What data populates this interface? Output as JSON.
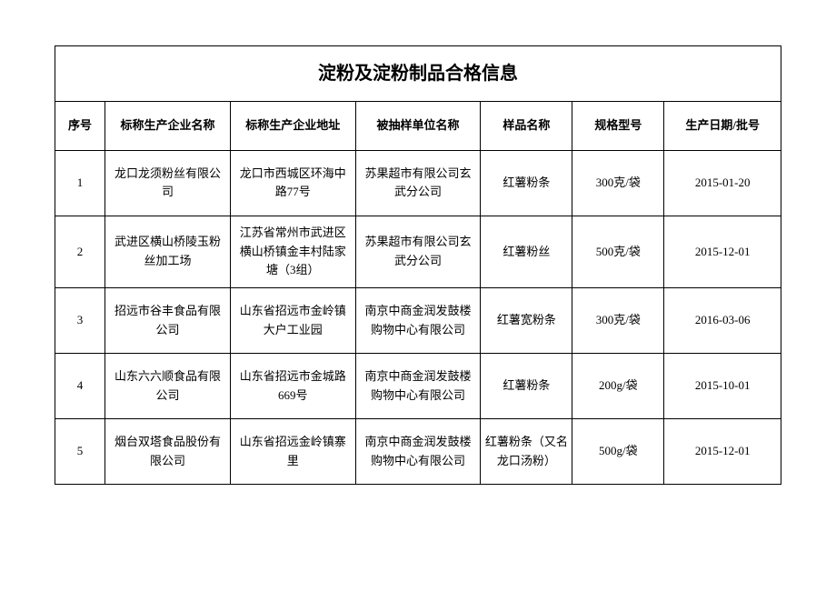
{
  "title": "淀粉及淀粉制品合格信息",
  "columns": [
    {
      "key": "seq",
      "label": "序号"
    },
    {
      "key": "company",
      "label": "标称生产企业名称"
    },
    {
      "key": "address",
      "label": "标称生产企业地址"
    },
    {
      "key": "sampled",
      "label": "被抽样单位名称"
    },
    {
      "key": "sample",
      "label": "样品名称"
    },
    {
      "key": "spec",
      "label": "规格型号"
    },
    {
      "key": "date",
      "label": "生产日期/批号"
    }
  ],
  "rows": [
    {
      "seq": "1",
      "company": "龙口龙须粉丝有限公司",
      "address": "龙口市西城区环海中路77号",
      "sampled": "苏果超市有限公司玄武分公司",
      "sample": "红薯粉条",
      "spec": "300克/袋",
      "date": "2015-01-20"
    },
    {
      "seq": "2",
      "company": "武进区横山桥陵玉粉丝加工场",
      "address": "江苏省常州市武进区横山桥镇金丰村陆家塘（3组）",
      "sampled": "苏果超市有限公司玄武分公司",
      "sample": "红薯粉丝",
      "spec": "500克/袋",
      "date": "2015-12-01"
    },
    {
      "seq": "3",
      "company": "招远市谷丰食品有限公司",
      "address": "山东省招远市金岭镇大户工业园",
      "sampled": "南京中商金润发鼓楼购物中心有限公司",
      "sample": "红薯宽粉条",
      "spec": "300克/袋",
      "date": "2016-03-06"
    },
    {
      "seq": "4",
      "company": "山东六六顺食品有限公司",
      "address": "山东省招远市金城路669号",
      "sampled": "南京中商金润发鼓楼购物中心有限公司",
      "sample": "红薯粉条",
      "spec": "200g/袋",
      "date": "2015-10-01"
    },
    {
      "seq": "5",
      "company": "烟台双塔食品股份有限公司",
      "address": "山东省招远金岭镇寨里",
      "sampled": "南京中商金润发鼓楼购物中心有限公司",
      "sample": "红薯粉条（又名龙口汤粉）",
      "spec": "500g/袋",
      "date": "2015-12-01"
    }
  ],
  "styling": {
    "border_color": "#000000",
    "background_color": "#ffffff",
    "title_fontsize": 20,
    "header_fontsize": 13,
    "cell_fontsize": 13,
    "font_family": "SimSun"
  }
}
